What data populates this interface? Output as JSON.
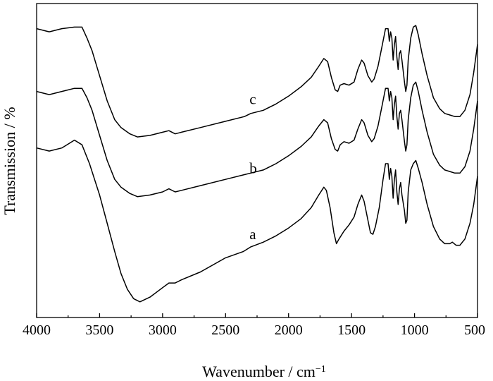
{
  "chart_data": {
    "type": "line",
    "xlabel": "Wavenumber / cm",
    "xlabel_sup": "−1",
    "ylabel": "Transmission / %",
    "xlim": [
      4000,
      500
    ],
    "x_reversed": true,
    "y_ticks_shown": false,
    "xticks": [
      4000,
      3500,
      3000,
      2500,
      2000,
      1500,
      1000,
      500
    ],
    "xtick_labels": [
      "4000",
      "3500",
      "3000",
      "2500",
      "2000",
      "1500",
      "1000",
      "500"
    ],
    "ylim": [
      0,
      100
    ],
    "grid": false,
    "series": [
      {
        "name": "a",
        "label_at": [
          2310,
          25
        ],
        "points": [
          [
            4000,
            54
          ],
          [
            3900,
            53
          ],
          [
            3800,
            54
          ],
          [
            3700,
            56.5
          ],
          [
            3640,
            55
          ],
          [
            3580,
            49
          ],
          [
            3500,
            39
          ],
          [
            3440,
            30
          ],
          [
            3380,
            21
          ],
          [
            3330,
            14
          ],
          [
            3280,
            9
          ],
          [
            3230,
            6
          ],
          [
            3180,
            5
          ],
          [
            3100,
            6.5
          ],
          [
            3000,
            9.5
          ],
          [
            2950,
            11
          ],
          [
            2900,
            11
          ],
          [
            2850,
            12
          ],
          [
            2700,
            14.5
          ],
          [
            2500,
            19
          ],
          [
            2360,
            21
          ],
          [
            2300,
            22.5
          ],
          [
            2200,
            24
          ],
          [
            2100,
            26
          ],
          [
            2000,
            28.5
          ],
          [
            1900,
            31.5
          ],
          [
            1820,
            35
          ],
          [
            1760,
            39
          ],
          [
            1720,
            41.5
          ],
          [
            1700,
            40.5
          ],
          [
            1670,
            35
          ],
          [
            1640,
            27
          ],
          [
            1620,
            23.5
          ],
          [
            1600,
            25
          ],
          [
            1560,
            27.5
          ],
          [
            1520,
            29.5
          ],
          [
            1480,
            32
          ],
          [
            1450,
            36
          ],
          [
            1420,
            39
          ],
          [
            1400,
            37
          ],
          [
            1370,
            31
          ],
          [
            1350,
            27
          ],
          [
            1330,
            26.5
          ],
          [
            1310,
            29
          ],
          [
            1280,
            35
          ],
          [
            1250,
            44
          ],
          [
            1230,
            49
          ],
          [
            1210,
            49
          ],
          [
            1200,
            44
          ],
          [
            1190,
            47.5
          ],
          [
            1180,
            45
          ],
          [
            1170,
            38
          ],
          [
            1160,
            44
          ],
          [
            1150,
            47
          ],
          [
            1140,
            40
          ],
          [
            1130,
            36
          ],
          [
            1120,
            41
          ],
          [
            1110,
            43
          ],
          [
            1100,
            39
          ],
          [
            1080,
            34
          ],
          [
            1070,
            30
          ],
          [
            1060,
            31
          ],
          [
            1050,
            40
          ],
          [
            1030,
            47
          ],
          [
            1010,
            49
          ],
          [
            990,
            50
          ],
          [
            970,
            47.5
          ],
          [
            940,
            43
          ],
          [
            900,
            36
          ],
          [
            850,
            29
          ],
          [
            800,
            25
          ],
          [
            760,
            23.5
          ],
          [
            720,
            23.5
          ],
          [
            700,
            24
          ],
          [
            670,
            23
          ],
          [
            640,
            23
          ],
          [
            600,
            25
          ],
          [
            560,
            30
          ],
          [
            530,
            36
          ],
          [
            500,
            45
          ]
        ]
      },
      {
        "name": "b",
        "label_at": [
          2310,
          46
        ],
        "points": [
          [
            4000,
            72
          ],
          [
            3900,
            71
          ],
          [
            3800,
            72
          ],
          [
            3700,
            73
          ],
          [
            3640,
            73
          ],
          [
            3600,
            70
          ],
          [
            3560,
            66
          ],
          [
            3500,
            58
          ],
          [
            3440,
            50
          ],
          [
            3380,
            44
          ],
          [
            3330,
            41.5
          ],
          [
            3260,
            39.5
          ],
          [
            3200,
            38.5
          ],
          [
            3100,
            39
          ],
          [
            3000,
            40
          ],
          [
            2950,
            41
          ],
          [
            2900,
            40
          ],
          [
            2850,
            40.5
          ],
          [
            2700,
            42
          ],
          [
            2500,
            44
          ],
          [
            2350,
            45.5
          ],
          [
            2300,
            46
          ],
          [
            2200,
            47
          ],
          [
            2100,
            49
          ],
          [
            2000,
            51.5
          ],
          [
            1900,
            54.5
          ],
          [
            1820,
            57.5
          ],
          [
            1760,
            61
          ],
          [
            1720,
            63
          ],
          [
            1690,
            62
          ],
          [
            1660,
            57
          ],
          [
            1630,
            53.5
          ],
          [
            1610,
            53
          ],
          [
            1590,
            55
          ],
          [
            1560,
            56
          ],
          [
            1520,
            55.5
          ],
          [
            1480,
            56.5
          ],
          [
            1450,
            60
          ],
          [
            1420,
            63
          ],
          [
            1400,
            62
          ],
          [
            1370,
            58
          ],
          [
            1340,
            56
          ],
          [
            1320,
            57
          ],
          [
            1290,
            61
          ],
          [
            1260,
            67
          ],
          [
            1230,
            73
          ],
          [
            1210,
            73
          ],
          [
            1200,
            69
          ],
          [
            1190,
            72
          ],
          [
            1180,
            70
          ],
          [
            1170,
            63
          ],
          [
            1160,
            68
          ],
          [
            1150,
            70.5
          ],
          [
            1140,
            64
          ],
          [
            1130,
            60
          ],
          [
            1120,
            65
          ],
          [
            1110,
            66
          ],
          [
            1100,
            63
          ],
          [
            1080,
            56
          ],
          [
            1070,
            53
          ],
          [
            1060,
            55
          ],
          [
            1050,
            63
          ],
          [
            1030,
            70
          ],
          [
            1010,
            74
          ],
          [
            990,
            75
          ],
          [
            970,
            72
          ],
          [
            940,
            66
          ],
          [
            900,
            59
          ],
          [
            850,
            52
          ],
          [
            800,
            48.5
          ],
          [
            760,
            47
          ],
          [
            720,
            46.5
          ],
          [
            680,
            46
          ],
          [
            640,
            46
          ],
          [
            600,
            48
          ],
          [
            560,
            53
          ],
          [
            530,
            60
          ],
          [
            500,
            69
          ]
        ]
      },
      {
        "name": "c",
        "label_at": [
          2310,
          68
        ],
        "points": [
          [
            4000,
            92
          ],
          [
            3900,
            91
          ],
          [
            3800,
            92
          ],
          [
            3700,
            92.5
          ],
          [
            3640,
            92.5
          ],
          [
            3600,
            89
          ],
          [
            3560,
            85
          ],
          [
            3500,
            77
          ],
          [
            3440,
            69
          ],
          [
            3380,
            63
          ],
          [
            3330,
            60.5
          ],
          [
            3260,
            58.5
          ],
          [
            3200,
            57.5
          ],
          [
            3100,
            58
          ],
          [
            3000,
            59
          ],
          [
            2950,
            59.5
          ],
          [
            2900,
            58.5
          ],
          [
            2850,
            59
          ],
          [
            2700,
            60.5
          ],
          [
            2500,
            62.5
          ],
          [
            2350,
            64
          ],
          [
            2300,
            65
          ],
          [
            2200,
            66
          ],
          [
            2100,
            68
          ],
          [
            2000,
            70.5
          ],
          [
            1900,
            73.5
          ],
          [
            1820,
            76.5
          ],
          [
            1760,
            80
          ],
          [
            1720,
            82.5
          ],
          [
            1690,
            81.5
          ],
          [
            1660,
            76.5
          ],
          [
            1630,
            72.5
          ],
          [
            1610,
            72
          ],
          [
            1590,
            74
          ],
          [
            1560,
            74.5
          ],
          [
            1520,
            74
          ],
          [
            1480,
            75
          ],
          [
            1450,
            79
          ],
          [
            1420,
            82
          ],
          [
            1400,
            81
          ],
          [
            1370,
            77
          ],
          [
            1340,
            75
          ],
          [
            1320,
            76
          ],
          [
            1290,
            80
          ],
          [
            1260,
            86
          ],
          [
            1230,
            92
          ],
          [
            1210,
            92
          ],
          [
            1200,
            88
          ],
          [
            1190,
            91
          ],
          [
            1180,
            89
          ],
          [
            1170,
            82
          ],
          [
            1160,
            87
          ],
          [
            1150,
            89.5
          ],
          [
            1140,
            83
          ],
          [
            1130,
            79
          ],
          [
            1120,
            84
          ],
          [
            1110,
            85
          ],
          [
            1100,
            82
          ],
          [
            1080,
            75
          ],
          [
            1070,
            72
          ],
          [
            1060,
            74
          ],
          [
            1050,
            82
          ],
          [
            1030,
            89
          ],
          [
            1010,
            92.5
          ],
          [
            990,
            93
          ],
          [
            970,
            90
          ],
          [
            940,
            84
          ],
          [
            900,
            77
          ],
          [
            850,
            70
          ],
          [
            800,
            66.5
          ],
          [
            760,
            65
          ],
          [
            720,
            64.5
          ],
          [
            680,
            64
          ],
          [
            640,
            64
          ],
          [
            600,
            66
          ],
          [
            560,
            71
          ],
          [
            530,
            78
          ],
          [
            500,
            87
          ]
        ]
      }
    ]
  }
}
